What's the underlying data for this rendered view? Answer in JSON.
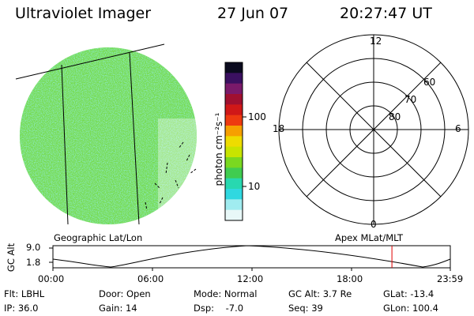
{
  "header": {
    "instrument": "Ultraviolet Imager",
    "date": "27 Jun 07",
    "time": "20:27:47 UT"
  },
  "image_panel": {
    "caption": "Geographic Lat/Lon"
  },
  "colorbar": {
    "unit_label": "photon cm⁻²s⁻¹",
    "ticks": [
      "100",
      "10"
    ],
    "colors": [
      "#0a0a1e",
      "#3a1060",
      "#7a1a6a",
      "#a01030",
      "#d01818",
      "#ee3a10",
      "#f6a000",
      "#eedc00",
      "#c8e400",
      "#7ad820",
      "#40cc50",
      "#28d8b0",
      "#30d8e0",
      "#a0ecf0",
      "#e8f8f8"
    ]
  },
  "polar_plot": {
    "caption": "Apex MLat/MLT",
    "mlt_labels": {
      "top": "12",
      "bottom": "0",
      "left": "18",
      "right": "6"
    },
    "lat_labels": [
      "60",
      "70",
      "80"
    ]
  },
  "altitude_strip": {
    "axis_label": "GC Alt",
    "y_ticks": [
      "9.0",
      "1.8"
    ],
    "x_ticks": [
      "00:00",
      "06:00",
      "12:00",
      "18:00",
      "23:59"
    ],
    "current_time_hours": 20.46
  },
  "status": {
    "row1": [
      {
        "text": "Flt: LBHL"
      },
      {
        "text": "Door: Open"
      },
      {
        "text": "Mode: Normal"
      },
      {
        "text": "GC Alt: 3.7 Re"
      },
      {
        "text": "GLat: -13.4"
      }
    ],
    "row2": [
      {
        "text": "IP: 36.0"
      },
      {
        "text": "Gain: 14"
      },
      {
        "text": "Dsp:    -7.0"
      },
      {
        "text": "Seq: 39"
      },
      {
        "text": "GLon: 100.4"
      }
    ]
  }
}
